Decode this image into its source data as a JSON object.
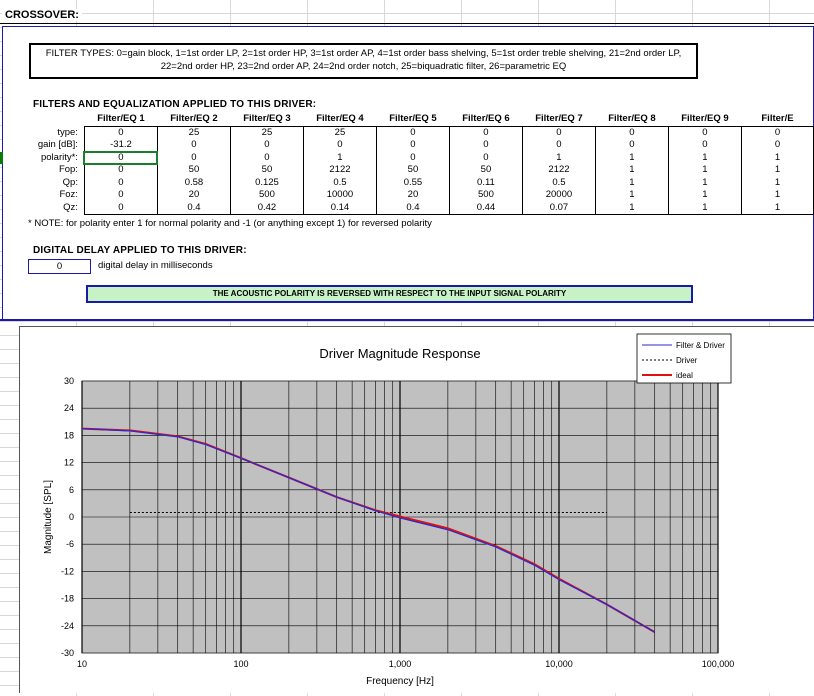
{
  "sheet_title": "CROSSOVER:",
  "filter_types_text": "FILTER TYPES: 0=gain block, 1=1st order LP, 2=1st order HP, 3=1st order AP, 4=1st order bass shelving, 5=1st order treble shelving, 21=2nd order LP, 22=2nd order HP, 23=2nd order AP, 24=2nd order notch, 25=biquadratic filter, 26=parametric EQ",
  "filters_heading": "FILTERS AND EQUALIZATION APPLIED TO THIS DRIVER:",
  "filter_table": {
    "columns": [
      "Filter/EQ 1",
      "Filter/EQ 2",
      "Filter/EQ 3",
      "Filter/EQ 4",
      "Filter/EQ 5",
      "Filter/EQ 6",
      "Filter/EQ 7",
      "Filter/EQ 8",
      "Filter/EQ 9",
      "Filter/E"
    ],
    "rows": [
      {
        "label": "type:",
        "values": [
          "0",
          "25",
          "25",
          "25",
          "0",
          "0",
          "0",
          "0",
          "0",
          "0"
        ]
      },
      {
        "label": "gain [dB]:",
        "values": [
          "-31.2",
          "0",
          "0",
          "0",
          "0",
          "0",
          "0",
          "0",
          "0",
          "0"
        ]
      },
      {
        "label": "polarity*:",
        "values": [
          "0",
          "0",
          "0",
          "1",
          "0",
          "0",
          "1",
          "1",
          "1",
          "1"
        ]
      },
      {
        "label": "Fop:",
        "values": [
          "0",
          "50",
          "50",
          "2122",
          "50",
          "50",
          "2122",
          "1",
          "1",
          "1"
        ]
      },
      {
        "label": "Qp:",
        "values": [
          "0",
          "0.58",
          "0.125",
          "0.5",
          "0.55",
          "0.11",
          "0.5",
          "1",
          "1",
          "1"
        ]
      },
      {
        "label": "Foz:",
        "values": [
          "0",
          "20",
          "500",
          "10000",
          "20",
          "500",
          "20000",
          "1",
          "1",
          "1"
        ]
      },
      {
        "label": "Qz:",
        "values": [
          "0",
          "0.4",
          "0.42",
          "0.14",
          "0.4",
          "0.44",
          "0.07",
          "1",
          "1",
          "1"
        ]
      }
    ]
  },
  "note": "* NOTE: for polarity enter 1 for normal polarity and -1 (or anything except 1) for reversed polarity",
  "delay_heading": "DIGITAL DELAY APPLIED TO THIS DRIVER:",
  "delay_value": "0",
  "delay_label": "digital delay in milliseconds",
  "polarity_banner": "THE ACOUSTIC POLARITY IS REVERSED WITH RESPECT TO THE INPUT SIGNAL POLARITY",
  "chart_data": {
    "type": "line",
    "title": "Driver Magnitude Response",
    "xlabel": "Frequency [Hz]",
    "ylabel": "Magnitude [SPL]",
    "x_scale": "log",
    "xlim": [
      10,
      100000
    ],
    "ylim": [
      -30,
      30
    ],
    "x_ticks": [
      10,
      100,
      1000,
      10000,
      100000
    ],
    "x_tick_labels": [
      "10",
      "100",
      "1,000",
      "10,000",
      "100,000"
    ],
    "y_ticks": [
      30,
      24,
      18,
      12,
      6,
      0,
      -6,
      -12,
      -18,
      -24,
      -30
    ],
    "grid": true,
    "legend_position": "top-right",
    "series": [
      {
        "name": "Filter & Driver",
        "color": "#2a2ad0",
        "style": "solid",
        "x": [
          10,
          20,
          40,
          60,
          100,
          200,
          400,
          700,
          1000,
          2000,
          4000,
          7000,
          10000,
          20000,
          40000
        ],
        "y": [
          19.5,
          19,
          17.7,
          16,
          13,
          8.7,
          4.4,
          1.4,
          -0.2,
          -2.8,
          -6.6,
          -10.6,
          -13.8,
          -19.3,
          -25.4
        ]
      },
      {
        "name": "Driver",
        "color": "#000000",
        "style": "dashed",
        "x": [
          20,
          20000
        ],
        "y": [
          1,
          1
        ]
      },
      {
        "name": "ideal",
        "color": "#e01010",
        "style": "solid",
        "x": [
          10,
          20,
          40,
          60,
          100,
          200,
          400,
          700,
          1000,
          2000,
          4000,
          7000,
          10000,
          20000,
          40000
        ],
        "y": [
          19.5,
          19.1,
          17.8,
          16.1,
          13,
          8.7,
          4.4,
          1.5,
          0.1,
          -2.5,
          -6.4,
          -10.4,
          -13.6,
          -19.3,
          -25.4
        ]
      }
    ]
  }
}
